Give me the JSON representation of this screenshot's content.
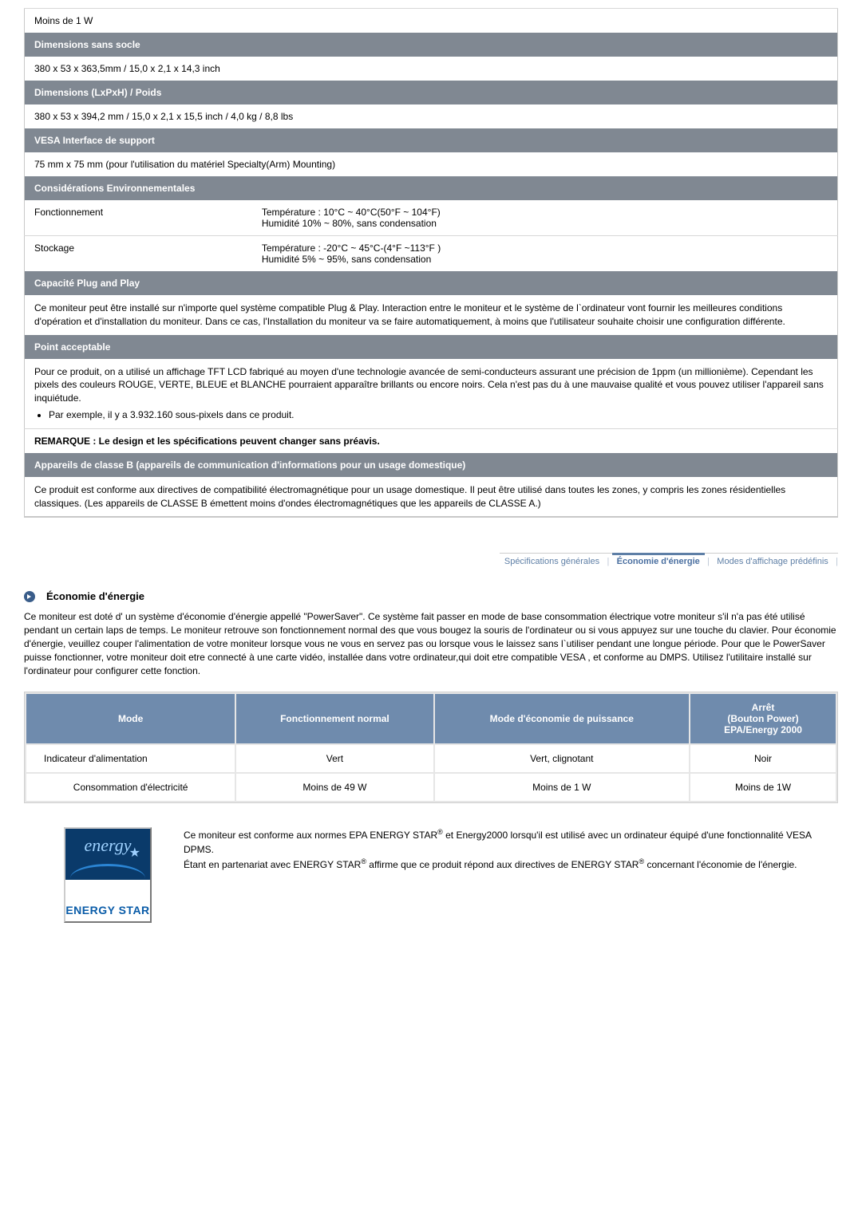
{
  "colors": {
    "section_header_bg": "#808892",
    "section_header_fg": "#ffffff",
    "border": "#c8c8c8",
    "tab_fg": "#5e7fa6",
    "power_th_bg": "#6f8bad",
    "estar_logo_top_bg": "#0a3a6a",
    "estar_logo_text": "#0a5ca8"
  },
  "spec": {
    "power_row": "Moins de 1 W",
    "hdr_dim_no_stand": "Dimensions sans socle",
    "dim_no_stand": "380 x 53 x 363,5mm / 15,0 x 2,1 x 14,3 inch",
    "hdr_dim_weight": "Dimensions (LxPxH) / Poids",
    "dim_weight": "380 x 53 x 394,2 mm / 15,0 x 2,1 x 15,5 inch / 4,0 kg / 8,8 lbs",
    "hdr_vesa": "VESA Interface de support",
    "vesa": "75 mm x 75 mm (pour l'utilisation du matériel Specialty(Arm) Mounting)",
    "hdr_env": "Considérations Environnementales",
    "env_run_label": "Fonctionnement",
    "env_run_val": "Température : 10°C ~ 40°C(50°F ~ 104°F)\nHumidité 10% ~ 80%, sans condensation",
    "env_store_label": "Stockage",
    "env_store_val": "Température : -20°C ~ 45°C-(4°F ~113°F )\nHumidité 5% ~ 95%, sans condensation",
    "hdr_pnp": "Capacité Plug and Play",
    "pnp_text": "Ce moniteur peut être installé sur n'importe quel système compatible Plug & Play. Interaction entre le moniteur et le système de l`ordinateur vont fournir les meilleures conditions d'opération et d'installation du moniteur. Dans ce cas, l'Installation du moniteur va se faire automatiquement, à moins que l'utilisateur souhaite choisir une configuration différente.",
    "hdr_point": "Point acceptable",
    "point_text": "Pour ce produit, on a utilisé un affichage TFT LCD fabriqué au moyen d'une technologie avancée de semi-conducteurs assurant une précision de 1ppm (un millionième). Cependant les pixels des couleurs ROUGE, VERTE, BLEUE et BLANCHE pourraient apparaître brillants ou encore noirs. Cela n'est pas du à une mauvaise qualité et vous pouvez utiliser l'appareil sans inquiétude.",
    "point_bullet": "Par exemple, il y a 3.932.160 sous-pixels dans ce produit.",
    "remark": "REMARQUE : Le design et les spécifications peuvent changer sans préavis.",
    "hdr_classb": "Appareils de classe B (appareils de communication d'informations pour un usage domestique)",
    "classb_text": "Ce produit est conforme aux directives de compatibilité électromagnétique pour un usage domestique. Il peut être utilisé dans toutes les zones, y compris les zones résidentielles classiques. (Les appareils de CLASSE B émettent moins d'ondes électromagnétiques que les appareils de CLASSE A.)"
  },
  "tabs": {
    "t1": "Spécifications générales",
    "t2": "Économie d'énergie",
    "t3": "Modes d'affichage prédéfinis"
  },
  "energy": {
    "title": "Économie d'énergie",
    "intro": "Ce moniteur est doté d' un système d'économie d'énergie appellé \"PowerSaver\". Ce système fait passer en mode de base consommation électrique votre moniteur s'il n'a pas été utilisé pendant un certain laps de temps. Le moniteur retrouve son fonctionnement normal des que vous bougez la souris de l'ordinateur ou si vous appuyez sur une touche du clavier. Pour économie d'énergie, veuillez couper l'alimentation de votre moniteur lorsque vous ne vous en servez pas ou lorsque vous le laissez sans l`utiliser pendant une longue période. Pour que le PowerSaver puisse fonctionner, votre moniteur doit etre connecté à une carte vidéo, installée dans votre ordinateur,qui doit etre compatible VESA , et conforme au DMPS. Utilisez l'utilitaire installé sur l'ordinateur pour configurer cette fonction."
  },
  "power_table": {
    "headers": {
      "mode": "Mode",
      "normal": "Fonctionnement normal",
      "eco": "Mode d'économie de puissance",
      "off": "Arrêt\n(Bouton Power)\nEPA/Energy 2000"
    },
    "rows": [
      {
        "mode": "Indicateur d'alimentation",
        "normal": "Vert",
        "eco": "Vert, clignotant",
        "off": "Noir"
      },
      {
        "mode": "Consommation d'électricité",
        "normal": "Moins de 49 W",
        "eco": "Moins de 1 W",
        "off": "Moins de 1W"
      }
    ]
  },
  "estar": {
    "logo_top": "energy",
    "logo_bottom": "ENERGY STAR",
    "line1_a": "Ce moniteur est conforme aux normes EPA ENERGY STAR",
    "line1_b": " et Energy2000 lorsqu'il est utilisé avec un ordinateur équipé d'une fonctionnalité VESA DPMS.",
    "line2_a": "Étant en partenariat avec ENERGY STAR",
    "line2_b": " affirme que ce produit répond aux directives de ENERGY STAR",
    "line2_c": " concernant l'économie de l'énergie."
  }
}
